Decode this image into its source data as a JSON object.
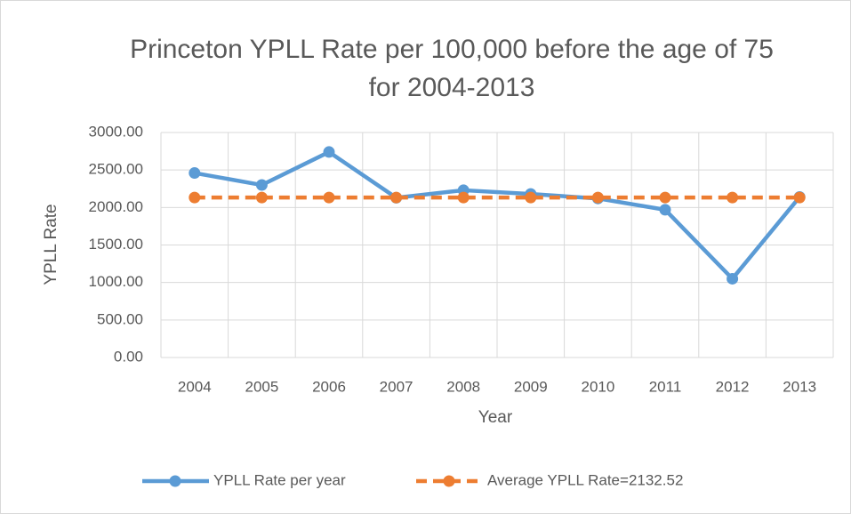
{
  "chart_data": {
    "type": "line",
    "title": "Princeton YPLL Rate per 100,000 before the age of 75 for 2004-2013",
    "x_label": "Year",
    "y_label": "YPLL Rate",
    "categories": [
      "2004",
      "2005",
      "2006",
      "2007",
      "2008",
      "2009",
      "2010",
      "2011",
      "2012",
      "2013"
    ],
    "series": [
      {
        "name": "YPLL Rate per year",
        "color": "#5b9bd5",
        "dashed": false,
        "values": [
          2460,
          2300,
          2740,
          2130,
          2230,
          2180,
          2120,
          1970,
          1050,
          2140
        ]
      },
      {
        "name": "Average YPLL Rate=2132.52",
        "color": "#ed7d31",
        "dashed": true,
        "values": [
          2132.52,
          2132.52,
          2132.52,
          2132.52,
          2132.52,
          2132.52,
          2132.52,
          2132.52,
          2132.52,
          2132.52
        ]
      }
    ],
    "ylim": [
      0,
      3000
    ],
    "yticks": [
      {
        "value": 0,
        "label": "0.00"
      },
      {
        "value": 500,
        "label": "500.00"
      },
      {
        "value": 1000,
        "label": "1000.00"
      },
      {
        "value": 1500,
        "label": "1500.00"
      },
      {
        "value": 2000,
        "label": "2000.00"
      },
      {
        "value": 2500,
        "label": "2500.00"
      },
      {
        "value": 3000,
        "label": "3000.00"
      }
    ],
    "grid": true,
    "legend": "bottom"
  }
}
